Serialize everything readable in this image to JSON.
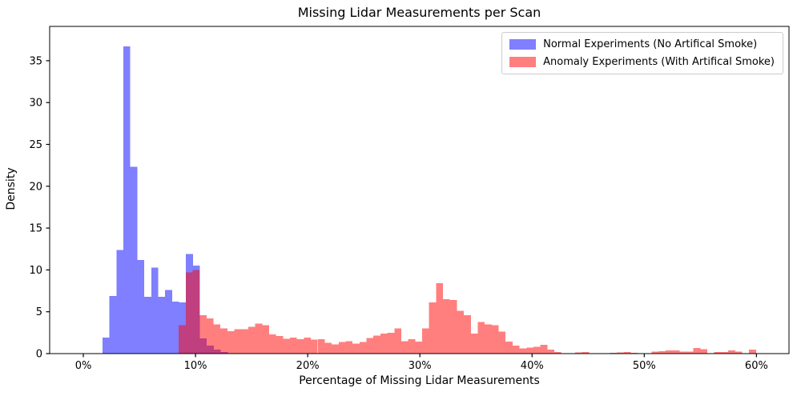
{
  "title": "Missing Lidar Measurements per Scan",
  "axes": {
    "xlabel": "Percentage of Missing Lidar Measurements",
    "ylabel": "Density"
  },
  "legend": {
    "position": "upper right",
    "items": [
      {
        "label": "Normal Experiments (No Artifical Smoke)",
        "color": "rgba(0,0,255,0.5)"
      },
      {
        "label": "Anomaly Experiments (With Artifical Smoke)",
        "color": "rgba(255,0,0,0.5)"
      }
    ]
  },
  "chart_data": {
    "type": "bar",
    "subtype": "overlapping-histogram",
    "title": "Missing Lidar Measurements per Scan",
    "xlabel": "Percentage of Missing Lidar Measurements",
    "ylabel": "Density",
    "grid": false,
    "legend_position": "upper right",
    "xlim": [
      -3,
      62.9
    ],
    "ylim": [
      0,
      39.1
    ],
    "x_ticks": [
      0,
      10,
      20,
      30,
      40,
      50,
      60
    ],
    "x_tick_labels": [
      "0%",
      "10%",
      "20%",
      "30%",
      "40%",
      "50%",
      "60%"
    ],
    "y_ticks": [
      0,
      5,
      10,
      15,
      20,
      25,
      30,
      35
    ],
    "y_tick_labels": [
      "0",
      "5",
      "10",
      "15",
      "20",
      "25",
      "30",
      "35"
    ],
    "bin_width_pct": 0.62,
    "series": [
      {
        "name": "Normal Experiments (No Artifical Smoke)",
        "color": "rgba(0,0,255,0.5)",
        "bin_start_pct": 1.71,
        "densities": [
          1.9,
          6.9,
          12.4,
          36.7,
          22.3,
          11.2,
          6.8,
          10.3,
          6.8,
          7.6,
          6.2,
          6.1,
          11.9,
          10.5,
          1.8,
          0.95,
          0.5,
          0.2
        ]
      },
      {
        "name": "Anomaly Experiments (With Artifical Smoke)",
        "color": "rgba(255,0,0,0.5)",
        "bin_start_pct": 8.5,
        "densities": [
          3.4,
          9.7,
          10.0,
          4.6,
          4.2,
          3.5,
          3.0,
          2.7,
          2.9,
          2.9,
          3.2,
          3.6,
          3.4,
          2.3,
          2.1,
          1.75,
          1.9,
          1.7,
          1.9,
          1.65,
          1.7,
          1.3,
          1.1,
          1.4,
          1.5,
          1.2,
          1.4,
          1.85,
          2.15,
          2.4,
          2.5,
          3.0,
          1.5,
          1.7,
          1.45,
          3.0,
          6.1,
          8.4,
          6.5,
          6.4,
          5.1,
          4.6,
          2.4,
          3.8,
          3.5,
          3.4,
          2.65,
          1.45,
          0.95,
          0.6,
          0.7,
          0.8,
          1.05,
          0.5,
          0.2,
          0.05,
          0,
          0.15,
          0.2,
          0.05,
          0,
          0,
          0.08,
          0.15,
          0.2,
          0.1,
          0.05,
          0.05,
          0.25,
          0.3,
          0.38,
          0.38,
          0.25,
          0.25,
          0.65,
          0.55,
          0.05,
          0.2,
          0.2,
          0.38,
          0.22,
          0,
          0.48,
          0
        ]
      }
    ]
  },
  "style": {
    "axis_color": "#000000",
    "background": "#ffffff",
    "legend_border": "#cccccc"
  }
}
